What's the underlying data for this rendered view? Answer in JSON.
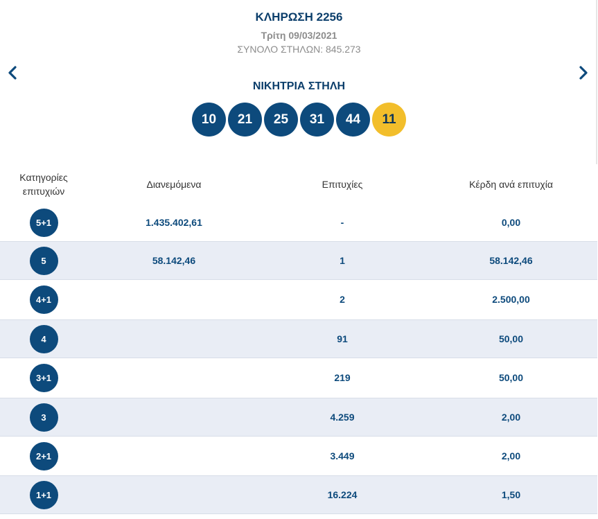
{
  "draw": {
    "title": "ΚΛΗΡΩΣΗ 2256",
    "date": "Τρίτη 09/03/2021",
    "columns": "ΣΥΝΟΛΟ ΣΤΗΛΩΝ: 845.273"
  },
  "winning": {
    "label": "ΝΙΚΗΤΡΙΑ ΣΤΗΛΗ",
    "numbers": [
      "10",
      "21",
      "25",
      "31",
      "44"
    ],
    "joker": "11"
  },
  "colors": {
    "primary": "#0d4a7c",
    "joker": "#f2be2b",
    "alt_row": "#e9edf5"
  },
  "table": {
    "headers": {
      "category_line1": "Κατηγορίες",
      "category_line2": "επιτυχιών",
      "distributed": "Διανεμόμενα",
      "winners": "Επιτυχίες",
      "prize": "Κέρδη ανά επιτυχία"
    },
    "rows": [
      {
        "category": "5+1",
        "distributed": "1.435.402,61",
        "winners": "-",
        "prize": "0,00"
      },
      {
        "category": "5",
        "distributed": "58.142,46",
        "winners": "1",
        "prize": "58.142,46"
      },
      {
        "category": "4+1",
        "distributed": "",
        "winners": "2",
        "prize": "2.500,00"
      },
      {
        "category": "4",
        "distributed": "",
        "winners": "91",
        "prize": "50,00"
      },
      {
        "category": "3+1",
        "distributed": "",
        "winners": "219",
        "prize": "50,00"
      },
      {
        "category": "3",
        "distributed": "",
        "winners": "4.259",
        "prize": "2,00"
      },
      {
        "category": "2+1",
        "distributed": "",
        "winners": "3.449",
        "prize": "2,00"
      },
      {
        "category": "1+1",
        "distributed": "",
        "winners": "16.224",
        "prize": "1,50"
      }
    ]
  }
}
